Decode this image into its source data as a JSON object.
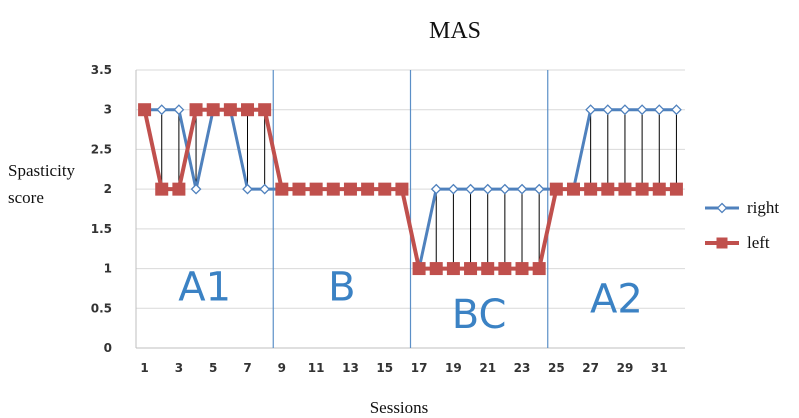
{
  "chart_data": {
    "type": "line",
    "title": "MAS",
    "xlabel": "Sessions",
    "ylabel_lines": [
      "Spasticity",
      "score"
    ],
    "x": [
      1,
      2,
      3,
      4,
      5,
      6,
      7,
      8,
      9,
      10,
      11,
      12,
      13,
      14,
      15,
      16,
      17,
      18,
      19,
      20,
      21,
      22,
      23,
      24,
      25,
      26,
      27,
      28,
      29,
      30,
      31,
      32
    ],
    "x_tick_labels": [
      "1",
      "3",
      "5",
      "7",
      "9",
      "11",
      "13",
      "15",
      "17",
      "19",
      "21",
      "23",
      "25",
      "27",
      "29",
      "31"
    ],
    "ylim": [
      0,
      3.5
    ],
    "y_tick_labels": [
      "0",
      "0.5",
      "1",
      "1.5",
      "2",
      "2.5",
      "3",
      "3.5"
    ],
    "grid": true,
    "legend_position": "right",
    "series": [
      {
        "name": "right",
        "color": "#4f81bd",
        "marker": "diamond-open",
        "values": [
          3,
          3,
          3,
          2,
          3,
          3,
          2,
          2,
          2,
          2,
          2,
          2,
          2,
          2,
          2,
          2,
          1,
          2,
          2,
          2,
          2,
          2,
          2,
          2,
          2,
          2,
          3,
          3,
          3,
          3,
          3,
          3
        ]
      },
      {
        "name": "left",
        "color": "#c0504d",
        "marker": "square",
        "values": [
          3,
          2,
          2,
          3,
          3,
          3,
          3,
          3,
          2,
          2,
          2,
          2,
          2,
          2,
          2,
          2,
          1,
          1,
          1,
          1,
          1,
          1,
          1,
          1,
          2,
          2,
          2,
          2,
          2,
          2,
          2,
          2
        ]
      }
    ],
    "phase_dividers_after_session": [
      8.5,
      16.5,
      24.5
    ],
    "phase_labels": [
      {
        "text": "A1",
        "x": 4.5,
        "y": 0.6
      },
      {
        "text": "B",
        "x": 12.5,
        "y": 0.6
      },
      {
        "text": "BC",
        "x": 20.5,
        "y": 0.25
      },
      {
        "text": "A2",
        "x": 28.5,
        "y": 0.45
      }
    ],
    "phase_label_color": "#3b82c4",
    "difference_line_color": "#000000"
  }
}
